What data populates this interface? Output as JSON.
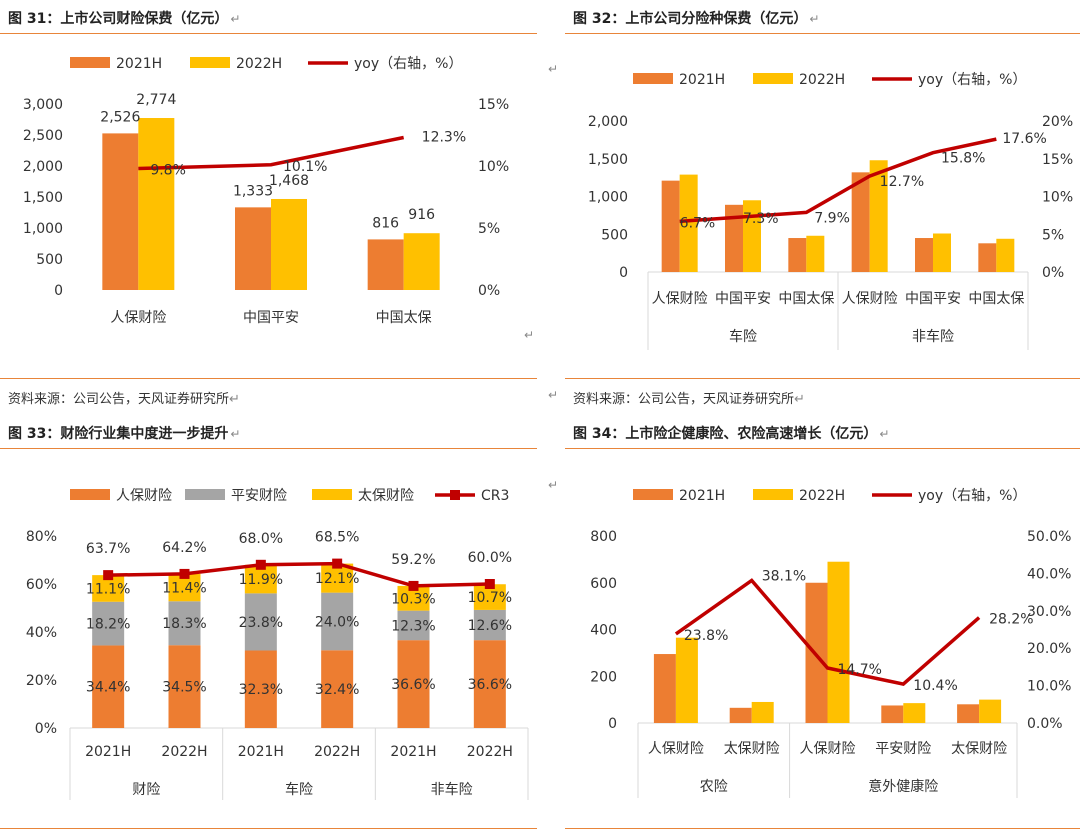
{
  "colors": {
    "c2021": "#ed7d31",
    "c2022": "#ffc000",
    "yoy": "#c00000",
    "gray": "#a5a5a5",
    "axis": "#d9d9d9"
  },
  "return_mark": "↵",
  "source_left": "资料来源：公司公告，天风证券研究所",
  "source_right": "资料来源：公司公告，天风证券研究所",
  "chart_data": [
    {
      "id": "fig31",
      "type": "bar+line",
      "title": "图 31：上市公司财险保费（亿元）",
      "legend": [
        "2021H",
        "2022H",
        "yoy（右轴，%）"
      ],
      "categories": [
        "人保财险",
        "中国平安",
        "中国太保"
      ],
      "series": [
        {
          "name": "2021H",
          "values": [
            2526,
            1333,
            816
          ]
        },
        {
          "name": "2022H",
          "values": [
            2774,
            1468,
            916
          ]
        }
      ],
      "yoy": [
        9.8,
        10.1,
        12.3
      ],
      "value_labels": [
        [
          "2,526",
          "1,333",
          "816"
        ],
        [
          "2,774",
          "1,468",
          "916"
        ]
      ],
      "yoy_labels": [
        "9.8%",
        "10.1%",
        "12.3%"
      ],
      "ylim": [
        0,
        3000
      ],
      "yticks": [
        "0",
        "500",
        "1,000",
        "1,500",
        "2,000",
        "2,500",
        "3,000"
      ],
      "y2lim": [
        0,
        15
      ],
      "y2ticks": [
        "0%",
        "5%",
        "10%",
        "15%"
      ]
    },
    {
      "id": "fig32",
      "type": "bar+line",
      "title": "图 32：上市公司分险种保费（亿元）",
      "legend": [
        "2021H",
        "2022H",
        "yoy（右轴，%）"
      ],
      "categories": [
        "人保财险",
        "中国平安",
        "中国太保",
        "人保财险",
        "中国平安",
        "中国太保"
      ],
      "groups": [
        "车险",
        "非车险"
      ],
      "series": [
        {
          "name": "2021H",
          "values": [
            1210,
            890,
            450,
            1320,
            450,
            380
          ]
        },
        {
          "name": "2022H",
          "values": [
            1290,
            950,
            480,
            1480,
            510,
            440
          ]
        }
      ],
      "yoy": [
        6.7,
        7.3,
        7.9,
        12.7,
        15.8,
        17.6
      ],
      "yoy_labels": [
        "6.7%",
        "7.3%",
        "7.9%",
        "12.7%",
        "15.8%",
        "17.6%"
      ],
      "ylim": [
        0,
        2000
      ],
      "yticks": [
        "0",
        "500",
        "1,000",
        "1,500",
        "2,000"
      ],
      "y2lim": [
        0,
        20
      ],
      "y2ticks": [
        "0%",
        "5%",
        "10%",
        "15%",
        "20%"
      ]
    },
    {
      "id": "fig33",
      "type": "stacked_bar+line",
      "title": "图 33：财险行业集中度进一步提升",
      "legend": [
        "人保财险",
        "平安财险",
        "太保财险",
        "CR3"
      ],
      "categories": [
        "2021H",
        "2022H",
        "2021H",
        "2022H",
        "2021H",
        "2022H"
      ],
      "groups": [
        "财险",
        "车险",
        "非车险"
      ],
      "series": [
        {
          "name": "人保财险",
          "values": [
            34.4,
            34.5,
            32.3,
            32.4,
            36.6,
            36.6
          ]
        },
        {
          "name": "平安财险",
          "values": [
            18.2,
            18.3,
            23.8,
            24.0,
            12.3,
            12.6
          ]
        },
        {
          "name": "太保财险",
          "values": [
            11.1,
            11.4,
            11.9,
            12.1,
            10.3,
            10.7
          ]
        }
      ],
      "series_labels": [
        [
          "34.4%",
          "34.5%",
          "32.3%",
          "32.4%",
          "36.6%",
          "36.6%"
        ],
        [
          "18.2%",
          "18.3%",
          "23.8%",
          "24.0%",
          "12.3%",
          "12.6%"
        ],
        [
          "11.1%",
          "11.4%",
          "11.9%",
          "12.1%",
          "10.3%",
          "10.7%"
        ]
      ],
      "cr3": [
        63.7,
        64.2,
        68.0,
        68.5,
        59.2,
        60.0
      ],
      "cr3_labels": [
        "63.7%",
        "64.2%",
        "68.0%",
        "68.5%",
        "59.2%",
        "60.0%"
      ],
      "ylim": [
        0,
        80
      ],
      "yticks": [
        "0%",
        "20%",
        "40%",
        "60%",
        "80%"
      ]
    },
    {
      "id": "fig34",
      "type": "bar+line",
      "title": "图 34：上市险企健康险、农险高速增长（亿元）",
      "legend": [
        "2021H",
        "2022H",
        "yoy（右轴，%）"
      ],
      "categories": [
        "人保财险",
        "太保财险",
        "人保财险",
        "平安财险",
        "太保财险"
      ],
      "groups": [
        "农险",
        "意外健康险"
      ],
      "series": [
        {
          "name": "2021H",
          "values": [
            295,
            65,
            600,
            75,
            80
          ]
        },
        {
          "name": "2022H",
          "values": [
            365,
            90,
            690,
            85,
            100
          ]
        }
      ],
      "yoy": [
        23.8,
        38.1,
        14.7,
        10.4,
        28.2
      ],
      "yoy_labels": [
        "23.8%",
        "38.1%",
        "14.7%",
        "10.4%",
        "28.2%"
      ],
      "ylim": [
        0,
        800
      ],
      "yticks": [
        "0",
        "200",
        "400",
        "600",
        "800"
      ],
      "y2lim": [
        0,
        50
      ],
      "y2ticks": [
        "0.0%",
        "10.0%",
        "20.0%",
        "30.0%",
        "40.0%",
        "50.0%"
      ]
    }
  ]
}
